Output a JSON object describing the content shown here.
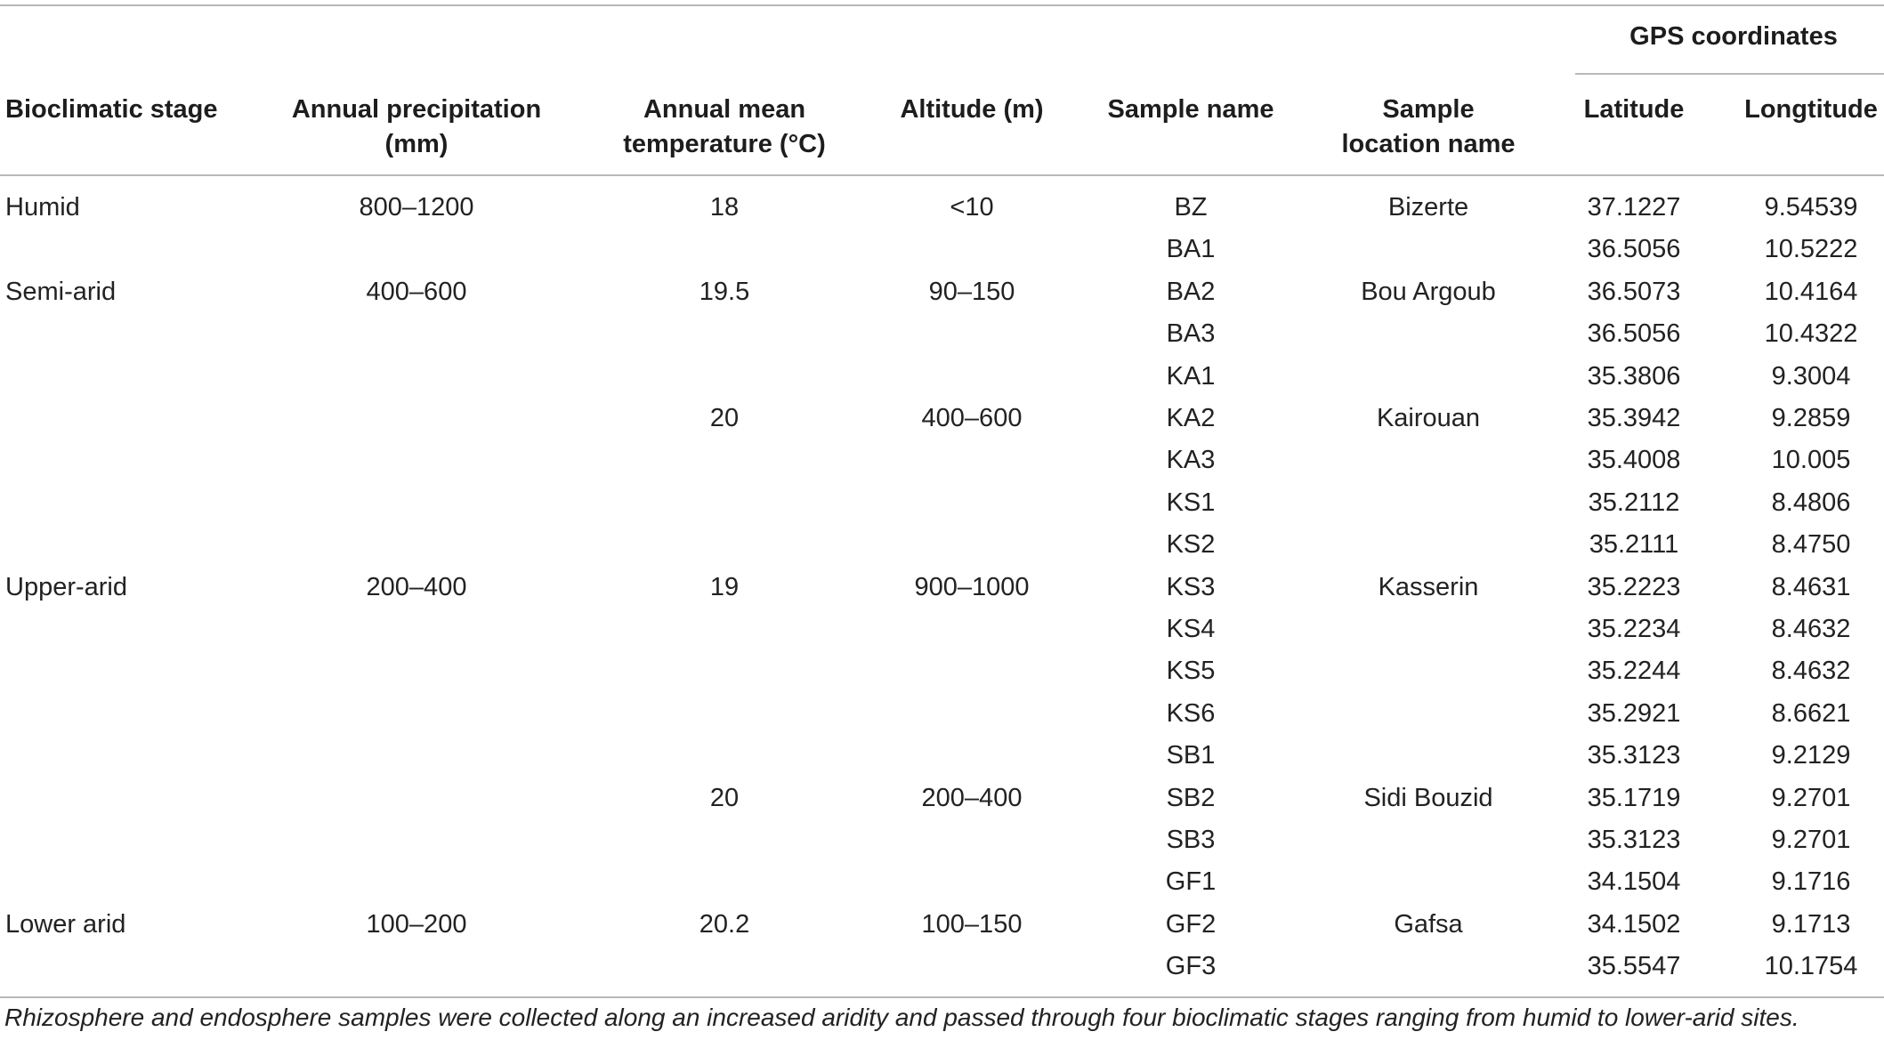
{
  "table": {
    "header": {
      "gps_group": "GPS coordinates",
      "columns": [
        {
          "key": "stage",
          "lines": [
            "Bioclimatic stage"
          ]
        },
        {
          "key": "precip",
          "lines": [
            "Annual precipitation",
            "(mm)"
          ]
        },
        {
          "key": "temp",
          "lines": [
            "Annual mean",
            "temperature (°C)"
          ]
        },
        {
          "key": "alt",
          "lines": [
            "Altitude (m)"
          ]
        },
        {
          "key": "sample",
          "lines": [
            "Sample name"
          ]
        },
        {
          "key": "location",
          "lines": [
            "Sample",
            "location name"
          ]
        },
        {
          "key": "lat",
          "lines": [
            "Latitude"
          ]
        },
        {
          "key": "lon",
          "lines": [
            "Longtitude"
          ]
        }
      ]
    },
    "samples": [
      {
        "name": "BZ",
        "lat": "37.1227",
        "lon": "9.54539"
      },
      {
        "name": "BA1",
        "lat": "36.5056",
        "lon": "10.5222"
      },
      {
        "name": "BA2",
        "lat": "36.5073",
        "lon": "10.4164"
      },
      {
        "name": "BA3",
        "lat": "36.5056",
        "lon": "10.4322"
      },
      {
        "name": "KA1",
        "lat": "35.3806",
        "lon": "9.3004"
      },
      {
        "name": "KA2",
        "lat": "35.3942",
        "lon": "9.2859"
      },
      {
        "name": "KA3",
        "lat": "35.4008",
        "lon": "10.005"
      },
      {
        "name": "KS1",
        "lat": "35.2112",
        "lon": "8.4806"
      },
      {
        "name": "KS2",
        "lat": "35.2111",
        "lon": "8.4750"
      },
      {
        "name": "KS3",
        "lat": "35.2223",
        "lon": "8.4631"
      },
      {
        "name": "KS4",
        "lat": "35.2234",
        "lon": "8.4632"
      },
      {
        "name": "KS5",
        "lat": "35.2244",
        "lon": "8.4632"
      },
      {
        "name": "KS6",
        "lat": "35.2921",
        "lon": "8.6621"
      },
      {
        "name": "SB1",
        "lat": "35.3123",
        "lon": "9.2129"
      },
      {
        "name": "SB2",
        "lat": "35.1719",
        "lon": "9.2701"
      },
      {
        "name": "SB3",
        "lat": "35.3123",
        "lon": "9.2701"
      },
      {
        "name": "GF1",
        "lat": "34.1504",
        "lon": "9.1716"
      },
      {
        "name": "GF2",
        "lat": "34.1502",
        "lon": "9.1713"
      },
      {
        "name": "GF3",
        "lat": "35.5547",
        "lon": "10.1754"
      }
    ],
    "stages": [
      {
        "label": "Humid",
        "precip": "800–1200",
        "row": 0
      },
      {
        "label": "Semi-arid",
        "precip": "400–600",
        "row": 2
      },
      {
        "label": "Upper-arid",
        "precip": "200–400",
        "row": 9
      },
      {
        "label": "Lower arid",
        "precip": "100–200",
        "row": 17
      }
    ],
    "sites": [
      {
        "location": "Bizerte",
        "temp": "18",
        "alt": "<10",
        "row": 0
      },
      {
        "location": "Bou Argoub",
        "temp": "19.5",
        "alt": "90–150",
        "row": 2
      },
      {
        "location": "Kairouan",
        "temp": "20",
        "alt": "400–600",
        "row": 5
      },
      {
        "location": "Kasserin",
        "temp": "19",
        "alt": "900–1000",
        "row": 9
      },
      {
        "location": "Sidi Bouzid",
        "temp": "20",
        "alt": "200–400",
        "row": 14
      },
      {
        "location": "Gafsa",
        "temp": "20.2",
        "alt": "100–150",
        "row": 17
      }
    ]
  },
  "caption": "Rhizosphere and endosphere samples were collected along an increased aridity and passed through four bioclimatic stages ranging from humid to lower-arid sites."
}
